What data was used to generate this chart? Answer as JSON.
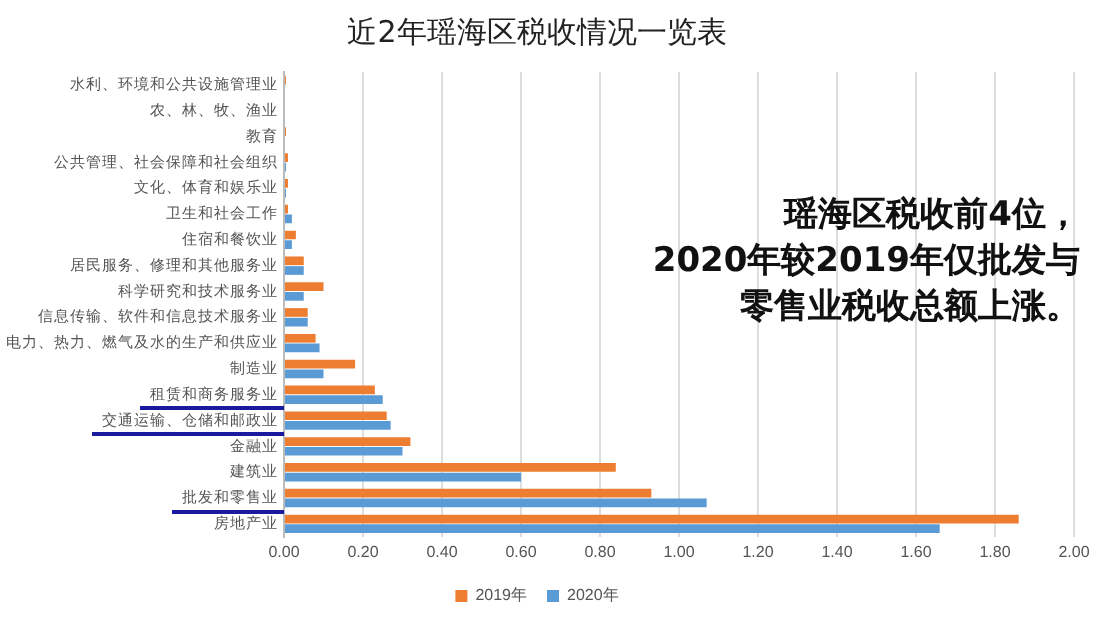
{
  "chart_data": {
    "type": "bar",
    "orientation": "horizontal",
    "title": "近2年瑶海区税收情况一览表",
    "categories": [
      "水利、环境和公共设施管理业",
      "农、林、牧、渔业",
      "教育",
      "公共管理、社会保障和社会组织",
      "文化、体育和娱乐业",
      "卫生和社会工作",
      "住宿和餐饮业",
      "居民服务、修理和其他服务业",
      "科学研究和技术服务业",
      "信息传输、软件和信息技术服务业",
      "电力、热力、燃气及水的生产和供应业",
      "制造业",
      "租赁和商务服务业",
      "交通运输、仓储和邮政业",
      "金融业",
      "建筑业",
      "批发和零售业",
      "房地产业"
    ],
    "series": [
      {
        "name": "2019年",
        "color": "#ed7d31",
        "values": [
          0.005,
          null,
          0.005,
          0.01,
          0.01,
          0.01,
          0.03,
          0.05,
          0.1,
          0.06,
          0.08,
          0.18,
          0.23,
          0.26,
          0.32,
          0.84,
          0.93,
          1.86
        ]
      },
      {
        "name": "2020年",
        "color": "#5b9bd5",
        "values": [
          null,
          null,
          null,
          0.005,
          0.005,
          0.02,
          0.02,
          0.05,
          0.05,
          0.06,
          0.09,
          0.1,
          0.25,
          0.27,
          0.3,
          0.6,
          1.07,
          1.66
        ]
      }
    ],
    "xlim": [
      0,
      2
    ],
    "xticks": [
      {
        "value": 0,
        "label": "0.00"
      },
      {
        "value": 0.2,
        "label": "0.20"
      },
      {
        "value": 0.4,
        "label": "0.40"
      },
      {
        "value": 0.6,
        "label": "0.60"
      },
      {
        "value": 0.8,
        "label": "0.80"
      },
      {
        "value": 1,
        "label": "1.00"
      },
      {
        "value": 1.2,
        "label": "1.20"
      },
      {
        "value": 1.4,
        "label": "1.40"
      },
      {
        "value": 1.6,
        "label": "1.60"
      },
      {
        "value": 1.8,
        "label": "1.80"
      },
      {
        "value": 2,
        "label": "2.00"
      }
    ],
    "grid": "x",
    "legend": "bottom",
    "annotations": [
      "瑶海区税收前4位，2020年较2019年仅批发与零售业税收总额上涨。"
    ]
  }
}
